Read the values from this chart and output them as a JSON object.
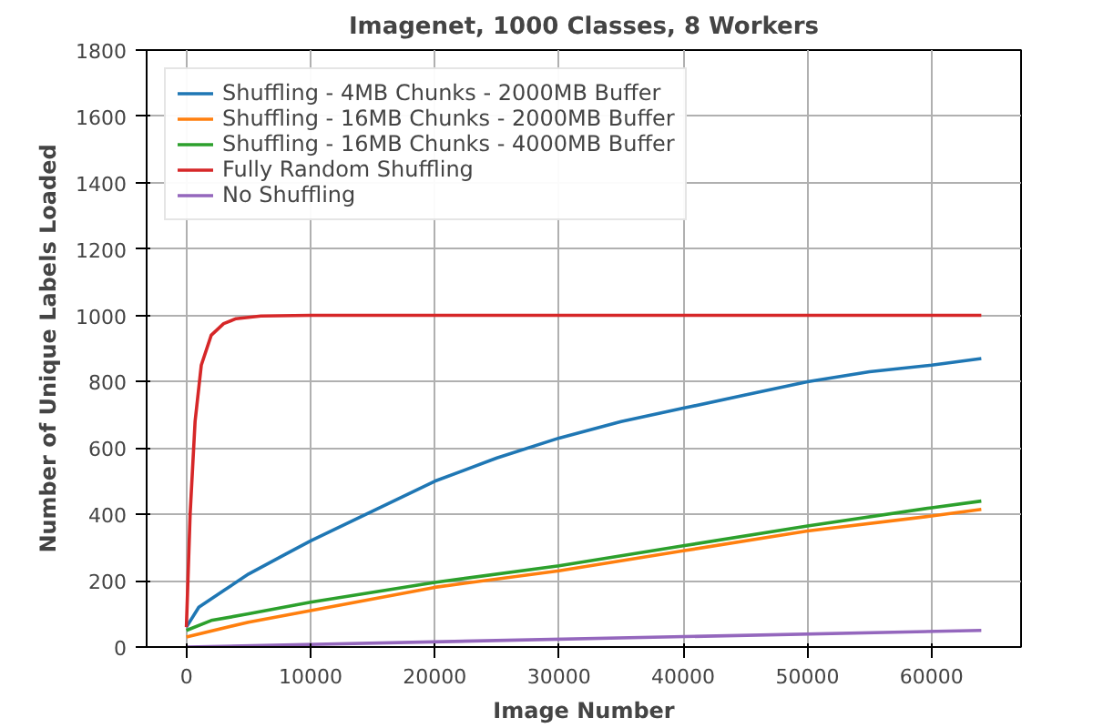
{
  "chart_data": {
    "type": "line",
    "title": "Imagenet, 1000 Classes, 8 Workers",
    "xlabel": "Image Number",
    "ylabel": "Number of Unique Labels Loaded",
    "xlim": [
      -3200,
      67200
    ],
    "ylim": [
      0,
      1800
    ],
    "xticks": [
      0,
      10000,
      20000,
      30000,
      40000,
      50000,
      60000
    ],
    "yticks": [
      0,
      200,
      400,
      600,
      800,
      1000,
      1200,
      1400,
      1600,
      1800
    ],
    "grid": true,
    "legend": "top left",
    "marker": "none",
    "line_style": "solid",
    "series": [
      {
        "name": "Shuffling - 4MB Chunks - 2000MB Buffer",
        "color": "#1f77b4",
        "x": [
          0,
          1000,
          3000,
          5000,
          8000,
          10000,
          15000,
          20000,
          25000,
          30000,
          35000,
          40000,
          45000,
          50000,
          55000,
          60000,
          64000
        ],
        "values": [
          60,
          120,
          170,
          220,
          280,
          320,
          410,
          500,
          570,
          630,
          680,
          720,
          760,
          800,
          830,
          850,
          870
        ]
      },
      {
        "name": "Shuffling - 16MB Chunks - 2000MB Buffer",
        "color": "#ff7f0e",
        "x": [
          0,
          5000,
          10000,
          20000,
          30000,
          40000,
          50000,
          60000,
          64000
        ],
        "values": [
          30,
          75,
          110,
          180,
          230,
          290,
          350,
          395,
          415
        ]
      },
      {
        "name": "Shuffling - 16MB Chunks - 4000MB Buffer",
        "color": "#2ca02c",
        "x": [
          0,
          2000,
          5000,
          10000,
          20000,
          30000,
          40000,
          50000,
          60000,
          64000
        ],
        "values": [
          50,
          80,
          100,
          135,
          195,
          245,
          305,
          365,
          420,
          440
        ]
      },
      {
        "name": "Fully Random Shuffling",
        "color": "#d62728",
        "x": [
          0,
          300,
          700,
          1200,
          2000,
          3000,
          4000,
          6000,
          10000,
          64000
        ],
        "values": [
          60,
          400,
          680,
          850,
          940,
          975,
          990,
          998,
          1000,
          1000
        ]
      },
      {
        "name": "No Shuffling",
        "color": "#9467bd",
        "x": [
          0,
          64000
        ],
        "values": [
          0,
          50
        ]
      }
    ]
  }
}
